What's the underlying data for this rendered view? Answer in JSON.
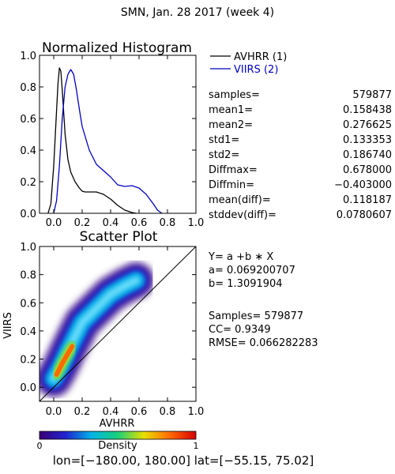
{
  "header": {
    "title": "SMN,  Jan. 28 2017 (week 4)"
  },
  "histogram": {
    "chart_data": {
      "type": "line",
      "title": "Normalized Histogram",
      "xlim": [
        -0.1,
        1.0
      ],
      "ylim": [
        0.0,
        1.0
      ],
      "xticks": [
        "0.0",
        "0.2",
        "0.4",
        "0.6",
        "0.8",
        "1.0"
      ],
      "yticks": [
        "0.0",
        "0.2",
        "0.4",
        "0.6",
        "0.8",
        "1.0"
      ],
      "series": [
        {
          "name": "AVHRR (1)",
          "color": "#000000",
          "x": [
            -0.04,
            -0.02,
            0.0,
            0.02,
            0.03,
            0.04,
            0.05,
            0.06,
            0.08,
            0.1,
            0.12,
            0.15,
            0.18,
            0.2,
            0.22,
            0.25,
            0.3,
            0.35,
            0.4,
            0.45,
            0.5,
            0.55,
            0.58
          ],
          "y": [
            0.0,
            0.06,
            0.3,
            0.65,
            0.82,
            0.92,
            0.9,
            0.78,
            0.5,
            0.34,
            0.26,
            0.2,
            0.16,
            0.14,
            0.135,
            0.135,
            0.135,
            0.12,
            0.09,
            0.05,
            0.02,
            0.005,
            0.0
          ]
        },
        {
          "name": "VIIRS (2)",
          "color": "#0000c0",
          "x": [
            0.0,
            0.02,
            0.04,
            0.06,
            0.08,
            0.1,
            0.12,
            0.14,
            0.16,
            0.18,
            0.2,
            0.25,
            0.3,
            0.35,
            0.4,
            0.45,
            0.5,
            0.55,
            0.6,
            0.65,
            0.7,
            0.73,
            0.76
          ],
          "y": [
            0.0,
            0.08,
            0.3,
            0.6,
            0.8,
            0.88,
            0.91,
            0.88,
            0.78,
            0.66,
            0.55,
            0.4,
            0.31,
            0.27,
            0.23,
            0.18,
            0.17,
            0.175,
            0.16,
            0.12,
            0.06,
            0.02,
            0.0
          ]
        }
      ]
    },
    "legend": [
      {
        "label": "AVHRR (1)",
        "color": "#000000"
      },
      {
        "label": "VIIRS (2)",
        "color": "#0000c0"
      }
    ]
  },
  "stats": [
    {
      "label": "samples=",
      "value": "579877"
    },
    {
      "label": "mean1=",
      "value": "0.158438"
    },
    {
      "label": "mean2=",
      "value": "0.276625"
    },
    {
      "label": "std1=",
      "value": "0.133353"
    },
    {
      "label": "std2=",
      "value": "0.186740"
    },
    {
      "label": "Diffmax=",
      "value": "0.678000"
    },
    {
      "label": "Diffmin=",
      "value": "−0.403000"
    },
    {
      "label": "mean(diff)=",
      "value": "0.118187"
    },
    {
      "label": "stddev(diff)=",
      "value": "0.0780607"
    }
  ],
  "scatter": {
    "chart_data": {
      "type": "heatmap",
      "title": "Scatter Plot",
      "xlabel": "AVHRR",
      "ylabel": "VIIRS",
      "xlim": [
        -0.1,
        1.0
      ],
      "ylim": [
        -0.1,
        1.0
      ],
      "xticks": [
        "0.0",
        "0.2",
        "0.4",
        "0.6",
        "0.8",
        "1.0"
      ],
      "yticks": [
        "0.0",
        "0.2",
        "0.4",
        "0.6",
        "0.8",
        "1.0"
      ],
      "reference_line": "one-to-one",
      "density_ridge": [
        [
          0.0,
          0.06
        ],
        [
          0.05,
          0.15
        ],
        [
          0.1,
          0.26
        ],
        [
          0.15,
          0.36
        ],
        [
          0.2,
          0.46
        ],
        [
          0.3,
          0.56
        ],
        [
          0.4,
          0.66
        ],
        [
          0.5,
          0.72
        ],
        [
          0.58,
          0.76
        ]
      ],
      "hot_core": [
        [
          0.02,
          0.09
        ],
        [
          0.06,
          0.17
        ],
        [
          0.1,
          0.24
        ],
        [
          0.13,
          0.29
        ]
      ]
    },
    "fit": [
      "Y=  a  +b  ∗  X",
      "a=  0.069200707",
      "b=  1.3091904"
    ],
    "metrics": [
      "Samples=  579877",
      "CC=    0.9349",
      "RMSE=  0.066282283"
    ]
  },
  "colorbar": {
    "label": "Density",
    "min_label": "0",
    "max_label": "1",
    "colors": [
      "#3a0076",
      "#2222d0",
      "#00b4e8",
      "#1ad07a",
      "#e8e000",
      "#ff6a00",
      "#d80000"
    ]
  },
  "footer": {
    "region": "lon=[−180.00,  180.00]  lat=[−55.15,  75.02]"
  }
}
